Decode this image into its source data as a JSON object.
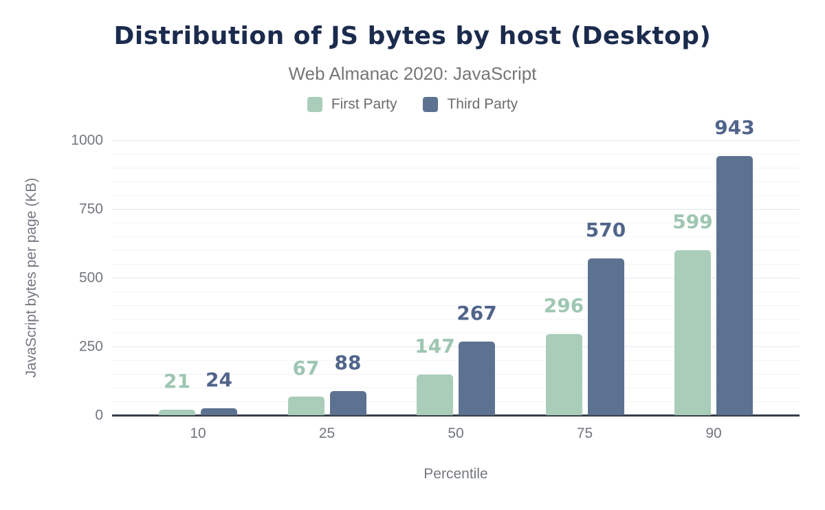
{
  "header": {
    "title": "Distribution of JS bytes by host (Desktop)",
    "subtitle": "Web Almanac 2020: JavaScript"
  },
  "chart_data": {
    "type": "bar",
    "title": "Distribution of JS bytes by host (Desktop)",
    "subtitle": "Web Almanac 2020: JavaScript",
    "categories": [
      "10",
      "25",
      "50",
      "75",
      "90"
    ],
    "series": [
      {
        "name": "First Party",
        "color": "#a9cdb9",
        "label_color": "#9ec6b1",
        "values": [
          21,
          67,
          147,
          296,
          599
        ]
      },
      {
        "name": "Third Party",
        "color": "#5d7290",
        "label_color": "#51658a",
        "values": [
          24,
          88,
          267,
          570,
          943
        ]
      }
    ],
    "xlabel": "Percentile",
    "ylabel": "JavaScript bytes per page (KB)",
    "ylim": [
      0,
      1000
    ],
    "yticks": [
      0,
      250,
      500,
      750,
      1000
    ],
    "minor_grid_step": 50,
    "grid": true,
    "legend_position": "top",
    "bar_value_labels": true
  },
  "colors": {
    "title": "#1b2b4d",
    "subtitle": "#767676",
    "tick_label": "#71767e",
    "axis_line": "#373e46",
    "background": "#ffffff"
  }
}
